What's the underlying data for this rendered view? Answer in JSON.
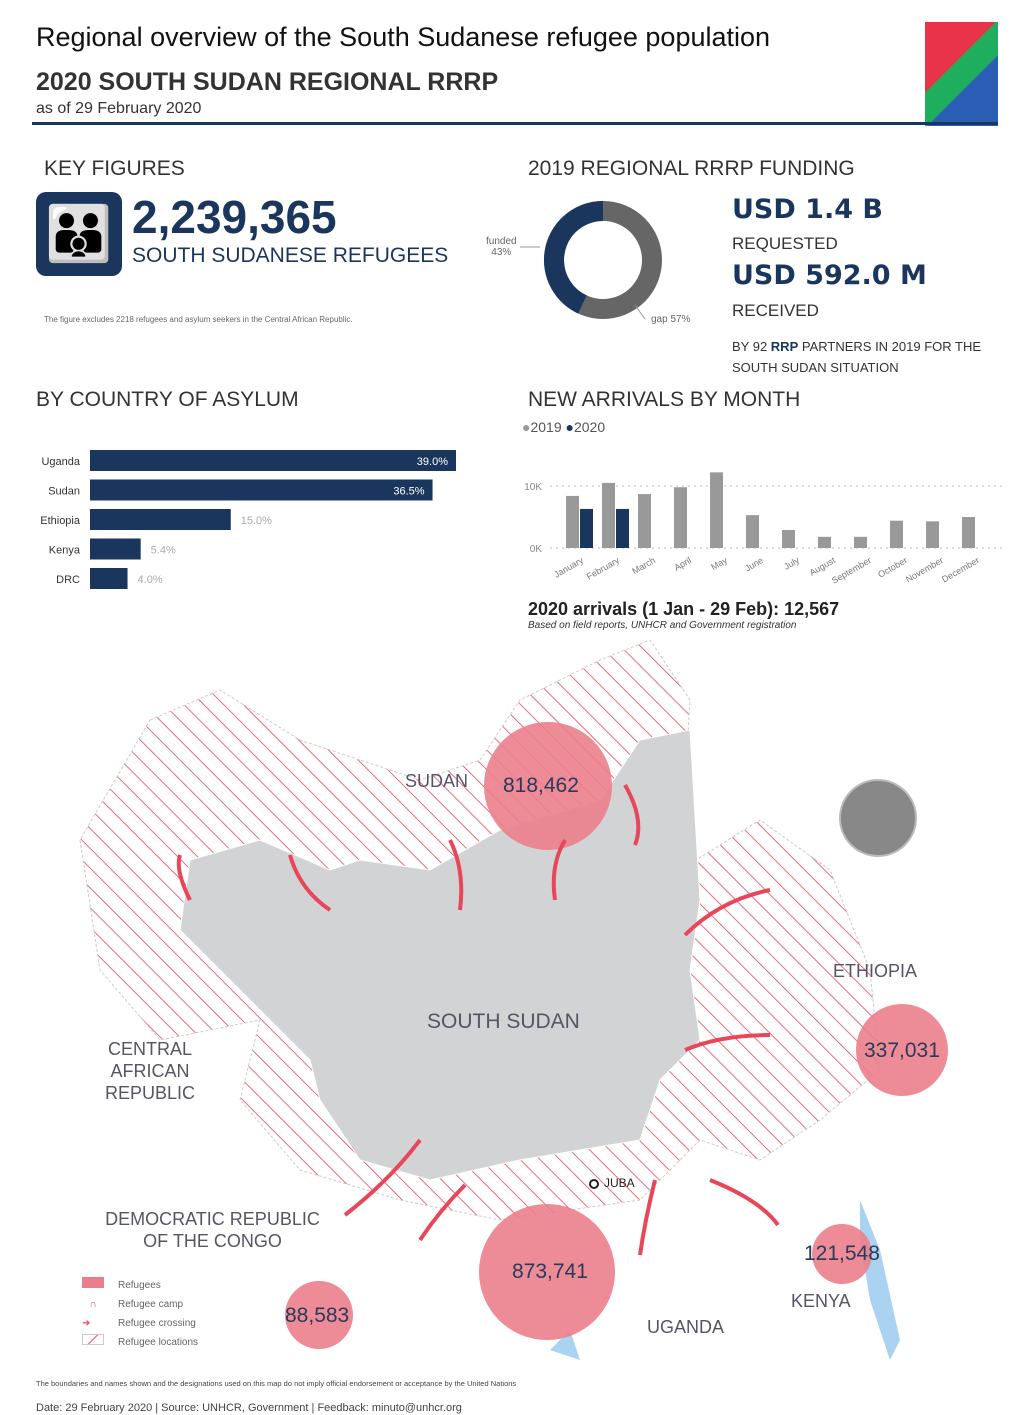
{
  "header": {
    "title": "Regional overview of the South Sudanese refugee population",
    "subtitle": "2020 SOUTH SUDAN REGIONAL RRRP",
    "as_of": "as of 29 February 2020"
  },
  "key_figures": {
    "heading": "KEY FIGURES",
    "icon": "family-icon",
    "value": "2,239,365",
    "label": "SOUTH SUDANESE REFUGEES",
    "note": "The figure excludes 2218 refugees and asylum seekers in the Central African Republic."
  },
  "funding": {
    "heading": "2019 REGIONAL RRRP FUNDING",
    "funded_label": "funded",
    "funded_pct": "43%",
    "gap_label": "gap 57%",
    "funded_value": 43,
    "requested": "USD 1.4 B",
    "requested_label": "REQUESTED",
    "received": "USD 592.0 M",
    "received_label": "RECEIVED",
    "partners_pre": "BY 92 ",
    "partners_rrp": "RRP",
    "partners_post": " PARTNERS IN 2019 FOR THE SOUTH SUDAN SITUATION",
    "colors": {
      "funded": "#1b365d",
      "gap": "#666666"
    }
  },
  "chart_data": [
    {
      "type": "bar",
      "orientation": "horizontal",
      "title": "BY COUNTRY OF ASYLUM",
      "categories": [
        "Uganda",
        "Sudan",
        "Ethiopia",
        "Kenya",
        "DRC"
      ],
      "values": [
        39.0,
        36.5,
        15.0,
        5.4,
        4.0
      ],
      "labels": [
        "39.0%",
        "36.5%",
        "15.0%",
        "5.4%",
        "4.0%"
      ],
      "color": "#1b365d"
    },
    {
      "type": "bar",
      "title": "NEW ARRIVALS BY MONTH",
      "categories": [
        "January",
        "February",
        "March",
        "April",
        "May",
        "June",
        "July",
        "August",
        "September",
        "October",
        "November",
        "December"
      ],
      "series": [
        {
          "name": "2019",
          "color": "#999999",
          "values": [
            8400,
            10500,
            8700,
            9800,
            12200,
            5300,
            2900,
            1800,
            1800,
            4400,
            4300,
            5000
          ]
        },
        {
          "name": "2020",
          "color": "#1b365d",
          "values": [
            6300,
            6300,
            null,
            null,
            null,
            null,
            null,
            null,
            null,
            null,
            null,
            null
          ]
        }
      ],
      "yticks": [
        "0K",
        "10K"
      ],
      "ylim": [
        0,
        13000
      ],
      "grid": true,
      "legend": "top-left"
    }
  ],
  "arrivals": {
    "headline": "2020 arrivals (1 Jan - 29 Feb): 12,567",
    "source": "Based on field reports, UNHCR and Government registration"
  },
  "map": {
    "countries": {
      "sudan": "SUDAN",
      "south_sudan": "SOUTH SUDAN",
      "car": "CENTRAL AFRICAN REPUBLIC",
      "ethiopia": "ETHIOPIA",
      "drc": "DEMOCRATIC REPUBLIC OF THE CONGO",
      "uganda": "UGANDA",
      "kenya": "KENYA"
    },
    "capital": "JUBA",
    "bubbles": {
      "sudan": "818,462",
      "ethiopia": "337,031",
      "uganda": "873,741",
      "kenya": "121,548",
      "drc": "88,583"
    },
    "legend": [
      "Refugees",
      "Refugee camp",
      "Refugee crossing",
      "Refugee locations"
    ]
  },
  "footer": {
    "disclaimer": "The boundaries and names shown and the designations used on this map do not imply official endorsement or acceptance by the United Nations",
    "credits": "Date: 29 February 2020 | Source: UNHCR, Government | Feedback: minuto@unhcr.org"
  }
}
